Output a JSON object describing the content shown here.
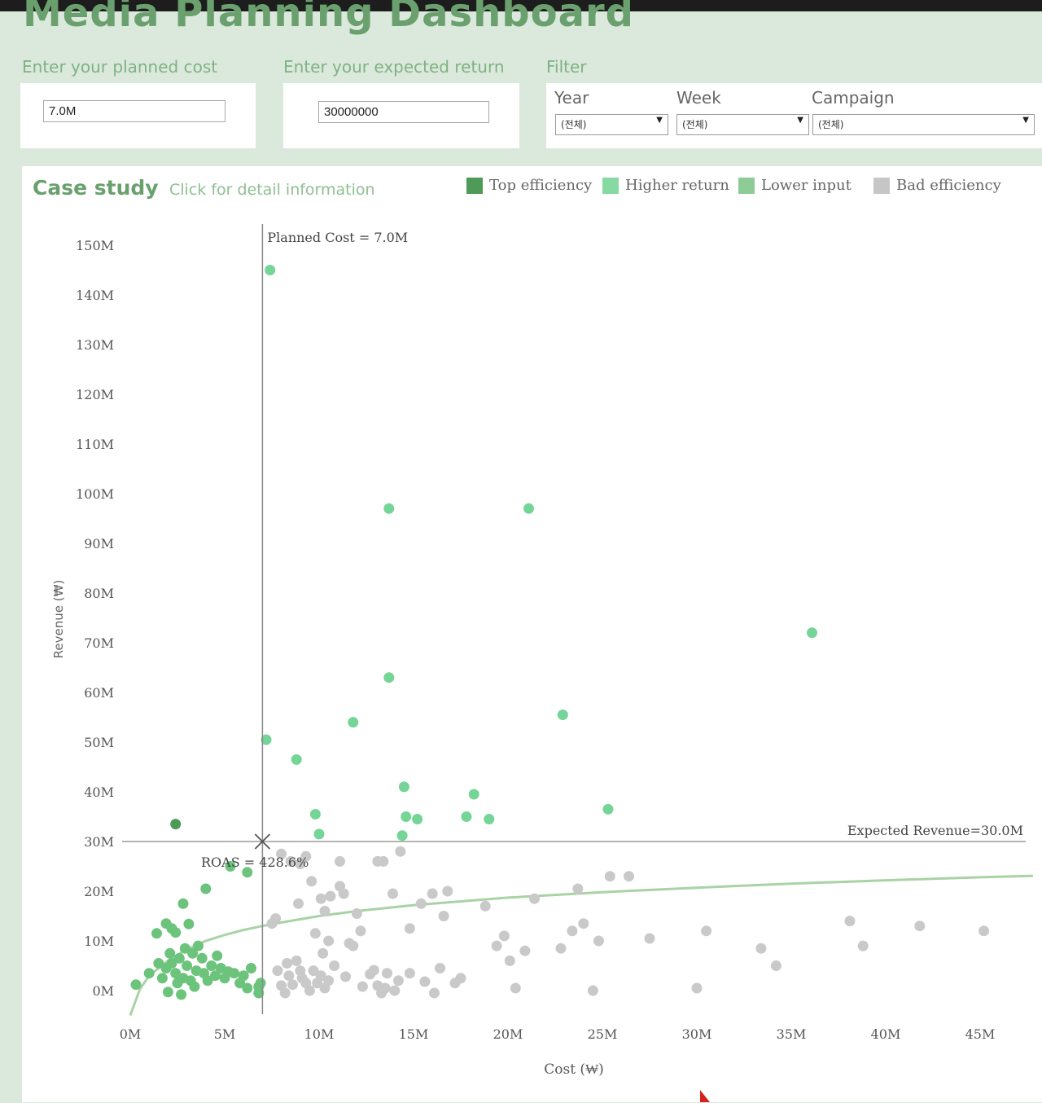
{
  "header": {
    "title": "Media Planning Dashboard"
  },
  "controls": {
    "cost_label": "Enter your planned cost",
    "cost_value": "7.0M",
    "return_label": "Enter your expected return",
    "return_value": "30000000",
    "filter_label": "Filter",
    "filters": {
      "year_label": "Year",
      "year_value": "(전체)",
      "week_label": "Week",
      "week_value": "(전체)",
      "campaign_label": "Campaign",
      "campaign_value": "(전체)"
    }
  },
  "case_study": {
    "title": "Case study",
    "subtitle": "Click for detail information",
    "legend": [
      {
        "label": "Top efficiency",
        "color": "#4e9a57"
      },
      {
        "label": "Higher return",
        "color": "#86d9a0"
      },
      {
        "label": "Lower input",
        "color": "#8fcb95"
      },
      {
        "label": "Bad efficiency",
        "color": "#c6c6c6"
      }
    ]
  },
  "chart_data": {
    "type": "scatter",
    "xlabel": "Cost (₩)",
    "ylabel": "Revenue (₩)",
    "xlim": [
      0,
      48
    ],
    "ylim": [
      -4,
      155
    ],
    "x_unit": "M",
    "y_unit": "M",
    "x_ticks": [
      "0M",
      "5M",
      "10M",
      "15M",
      "20M",
      "25M",
      "30M",
      "35M",
      "40M",
      "45M"
    ],
    "y_ticks": [
      "0M",
      "10M",
      "20M",
      "30M",
      "40M",
      "50M",
      "60M",
      "70M",
      "80M",
      "90M",
      "100M",
      "110M",
      "120M",
      "130M",
      "140M",
      "150M"
    ],
    "reference_lines": {
      "planned_cost": 7.0,
      "planned_cost_label": "Planned Cost = 7.0M",
      "expected_revenue": 30.0,
      "expected_revenue_label": "Expected Revenue=30.0M",
      "roas_label": "ROAS = 428.6%"
    },
    "series": [
      {
        "name": "Top efficiency",
        "color": "#4e9a57",
        "points": [
          [
            2.4,
            33.5
          ]
        ]
      },
      {
        "name": "Higher return",
        "color": "#75d597",
        "points": [
          [
            7.4,
            145
          ],
          [
            13.7,
            97
          ],
          [
            21.1,
            97
          ],
          [
            36.1,
            72
          ],
          [
            13.7,
            63
          ],
          [
            11.8,
            54
          ],
          [
            22.9,
            55.5
          ],
          [
            7.2,
            50.5
          ],
          [
            8.8,
            46.5
          ],
          [
            14.5,
            41
          ],
          [
            18.2,
            39.5
          ],
          [
            25.3,
            36.5
          ],
          [
            9.8,
            35.5
          ],
          [
            14.6,
            35
          ],
          [
            15.2,
            34.5
          ],
          [
            17.8,
            35
          ],
          [
            19.0,
            34.5
          ],
          [
            10.0,
            31.5
          ],
          [
            14.4,
            31.2
          ]
        ]
      },
      {
        "name": "Lower input",
        "color": "#6cc47c",
        "points": [
          [
            6.2,
            23.8
          ],
          [
            5.3,
            25
          ],
          [
            4.0,
            20.5
          ],
          [
            2.8,
            17.5
          ],
          [
            1.4,
            11.5
          ],
          [
            1.9,
            13.5
          ],
          [
            2.2,
            12.5
          ],
          [
            2.4,
            11.7
          ],
          [
            3.1,
            13.4
          ],
          [
            0.3,
            1.2
          ],
          [
            1.0,
            3.5
          ],
          [
            1.5,
            5.5
          ],
          [
            1.7,
            2.5
          ],
          [
            1.9,
            4.5
          ],
          [
            2.1,
            7.5
          ],
          [
            2.2,
            5.5
          ],
          [
            2.4,
            3.5
          ],
          [
            2.5,
            1.5
          ],
          [
            2.6,
            6.5
          ],
          [
            2.8,
            2.5
          ],
          [
            2.9,
            8.5
          ],
          [
            3.0,
            5.0
          ],
          [
            3.2,
            2.0
          ],
          [
            3.3,
            7.5
          ],
          [
            3.5,
            4.0
          ],
          [
            3.6,
            9.0
          ],
          [
            3.8,
            6.5
          ],
          [
            3.9,
            3.5
          ],
          [
            4.1,
            2.0
          ],
          [
            4.3,
            5.0
          ],
          [
            4.5,
            3.0
          ],
          [
            4.6,
            7.0
          ],
          [
            4.8,
            4.5
          ],
          [
            5.0,
            2.5
          ],
          [
            5.2,
            3.8
          ],
          [
            5.5,
            3.5
          ],
          [
            5.8,
            1.5
          ],
          [
            6.0,
            3.0
          ],
          [
            6.2,
            0.5
          ],
          [
            6.4,
            4.5
          ],
          [
            6.8,
            0.8
          ],
          [
            6.9,
            1.5
          ],
          [
            6.8,
            -0.5
          ],
          [
            2.0,
            -0.3
          ],
          [
            2.7,
            -0.8
          ],
          [
            3.4,
            0.8
          ]
        ]
      },
      {
        "name": "Bad efficiency",
        "color": "#c9c9c9",
        "points": [
          [
            7.5,
            13.5
          ],
          [
            7.7,
            14.5
          ],
          [
            8.0,
            27.5
          ],
          [
            8.5,
            26
          ],
          [
            8.9,
            17.5
          ],
          [
            9.0,
            25.5
          ],
          [
            9.3,
            27
          ],
          [
            9.6,
            22
          ],
          [
            9.8,
            11.5
          ],
          [
            10.1,
            18.5
          ],
          [
            10.3,
            16
          ],
          [
            10.5,
            10
          ],
          [
            10.6,
            19
          ],
          [
            10.2,
            7.5
          ],
          [
            10.8,
            5
          ],
          [
            11.1,
            26
          ],
          [
            11.1,
            21
          ],
          [
            11.3,
            19.5
          ],
          [
            11.6,
            9.5
          ],
          [
            11.8,
            9
          ],
          [
            12.0,
            15.5
          ],
          [
            12.2,
            12
          ],
          [
            13.1,
            26
          ],
          [
            13.4,
            26
          ],
          [
            13.6,
            3.5
          ],
          [
            13.9,
            19.5
          ],
          [
            14.3,
            28
          ],
          [
            14.8,
            3.5
          ],
          [
            14.8,
            12.5
          ],
          [
            15.4,
            17.5
          ],
          [
            16.0,
            19.5
          ],
          [
            16.4,
            4.5
          ],
          [
            16.6,
            15
          ],
          [
            16.8,
            20
          ],
          [
            17.2,
            1.5
          ],
          [
            17.5,
            2.5
          ],
          [
            18.8,
            17
          ],
          [
            19.4,
            9
          ],
          [
            19.8,
            11
          ],
          [
            20.1,
            6
          ],
          [
            20.4,
            0.5
          ],
          [
            20.9,
            8
          ],
          [
            21.4,
            18.5
          ],
          [
            22.8,
            8.5
          ],
          [
            23.4,
            12.0
          ],
          [
            23.7,
            20.5
          ],
          [
            24.0,
            13.5
          ],
          [
            24.5,
            0
          ],
          [
            24.8,
            10
          ],
          [
            25.4,
            23
          ],
          [
            26.4,
            23
          ],
          [
            27.5,
            10.5
          ],
          [
            30.0,
            0.5
          ],
          [
            30.5,
            12
          ],
          [
            33.4,
            8.5
          ],
          [
            34.2,
            5
          ],
          [
            38.1,
            14
          ],
          [
            38.8,
            9
          ],
          [
            41.8,
            13.0
          ],
          [
            45.2,
            12.0
          ],
          [
            7.8,
            4
          ],
          [
            8.0,
            1
          ],
          [
            8.2,
            -0.5
          ],
          [
            8.3,
            5.5
          ],
          [
            8.4,
            3
          ],
          [
            8.6,
            1.2
          ],
          [
            8.8,
            6
          ],
          [
            9.0,
            4
          ],
          [
            9.1,
            2.5
          ],
          [
            9.3,
            1.5
          ],
          [
            9.5,
            0
          ],
          [
            9.7,
            4
          ],
          [
            9.9,
            1.5
          ],
          [
            10.1,
            3
          ],
          [
            10.3,
            0.5
          ],
          [
            10.5,
            2
          ],
          [
            11.4,
            2.8
          ],
          [
            12.3,
            0.8
          ],
          [
            12.7,
            3.3
          ],
          [
            12.9,
            4.1
          ],
          [
            13.1,
            1
          ],
          [
            13.3,
            -0.5
          ],
          [
            13.5,
            0.5
          ],
          [
            14.0,
            0
          ],
          [
            14.2,
            2
          ],
          [
            15.6,
            1.8
          ],
          [
            16.1,
            -0.5
          ]
        ]
      }
    ],
    "trend_line": {
      "name": "Trend",
      "color": "#a9d3a5",
      "points": [
        [
          0.0,
          -5
        ],
        [
          0.5,
          0.2
        ],
        [
          1.0,
          3.0
        ],
        [
          2.0,
          6.0
        ],
        [
          3.0,
          8.3
        ],
        [
          4.0,
          10.0
        ],
        [
          5.0,
          11.2
        ],
        [
          6.0,
          12.2
        ],
        [
          7.0,
          13.0
        ],
        [
          8.0,
          13.7
        ],
        [
          10.0,
          15.0
        ],
        [
          12.0,
          16.0
        ],
        [
          15.0,
          17.2
        ],
        [
          20.0,
          18.7
        ],
        [
          25.0,
          19.8
        ],
        [
          30.0,
          20.7
        ],
        [
          35.0,
          21.5
        ],
        [
          40.0,
          22.2
        ],
        [
          45.0,
          22.8
        ],
        [
          47.8,
          23.1
        ]
      ]
    }
  }
}
